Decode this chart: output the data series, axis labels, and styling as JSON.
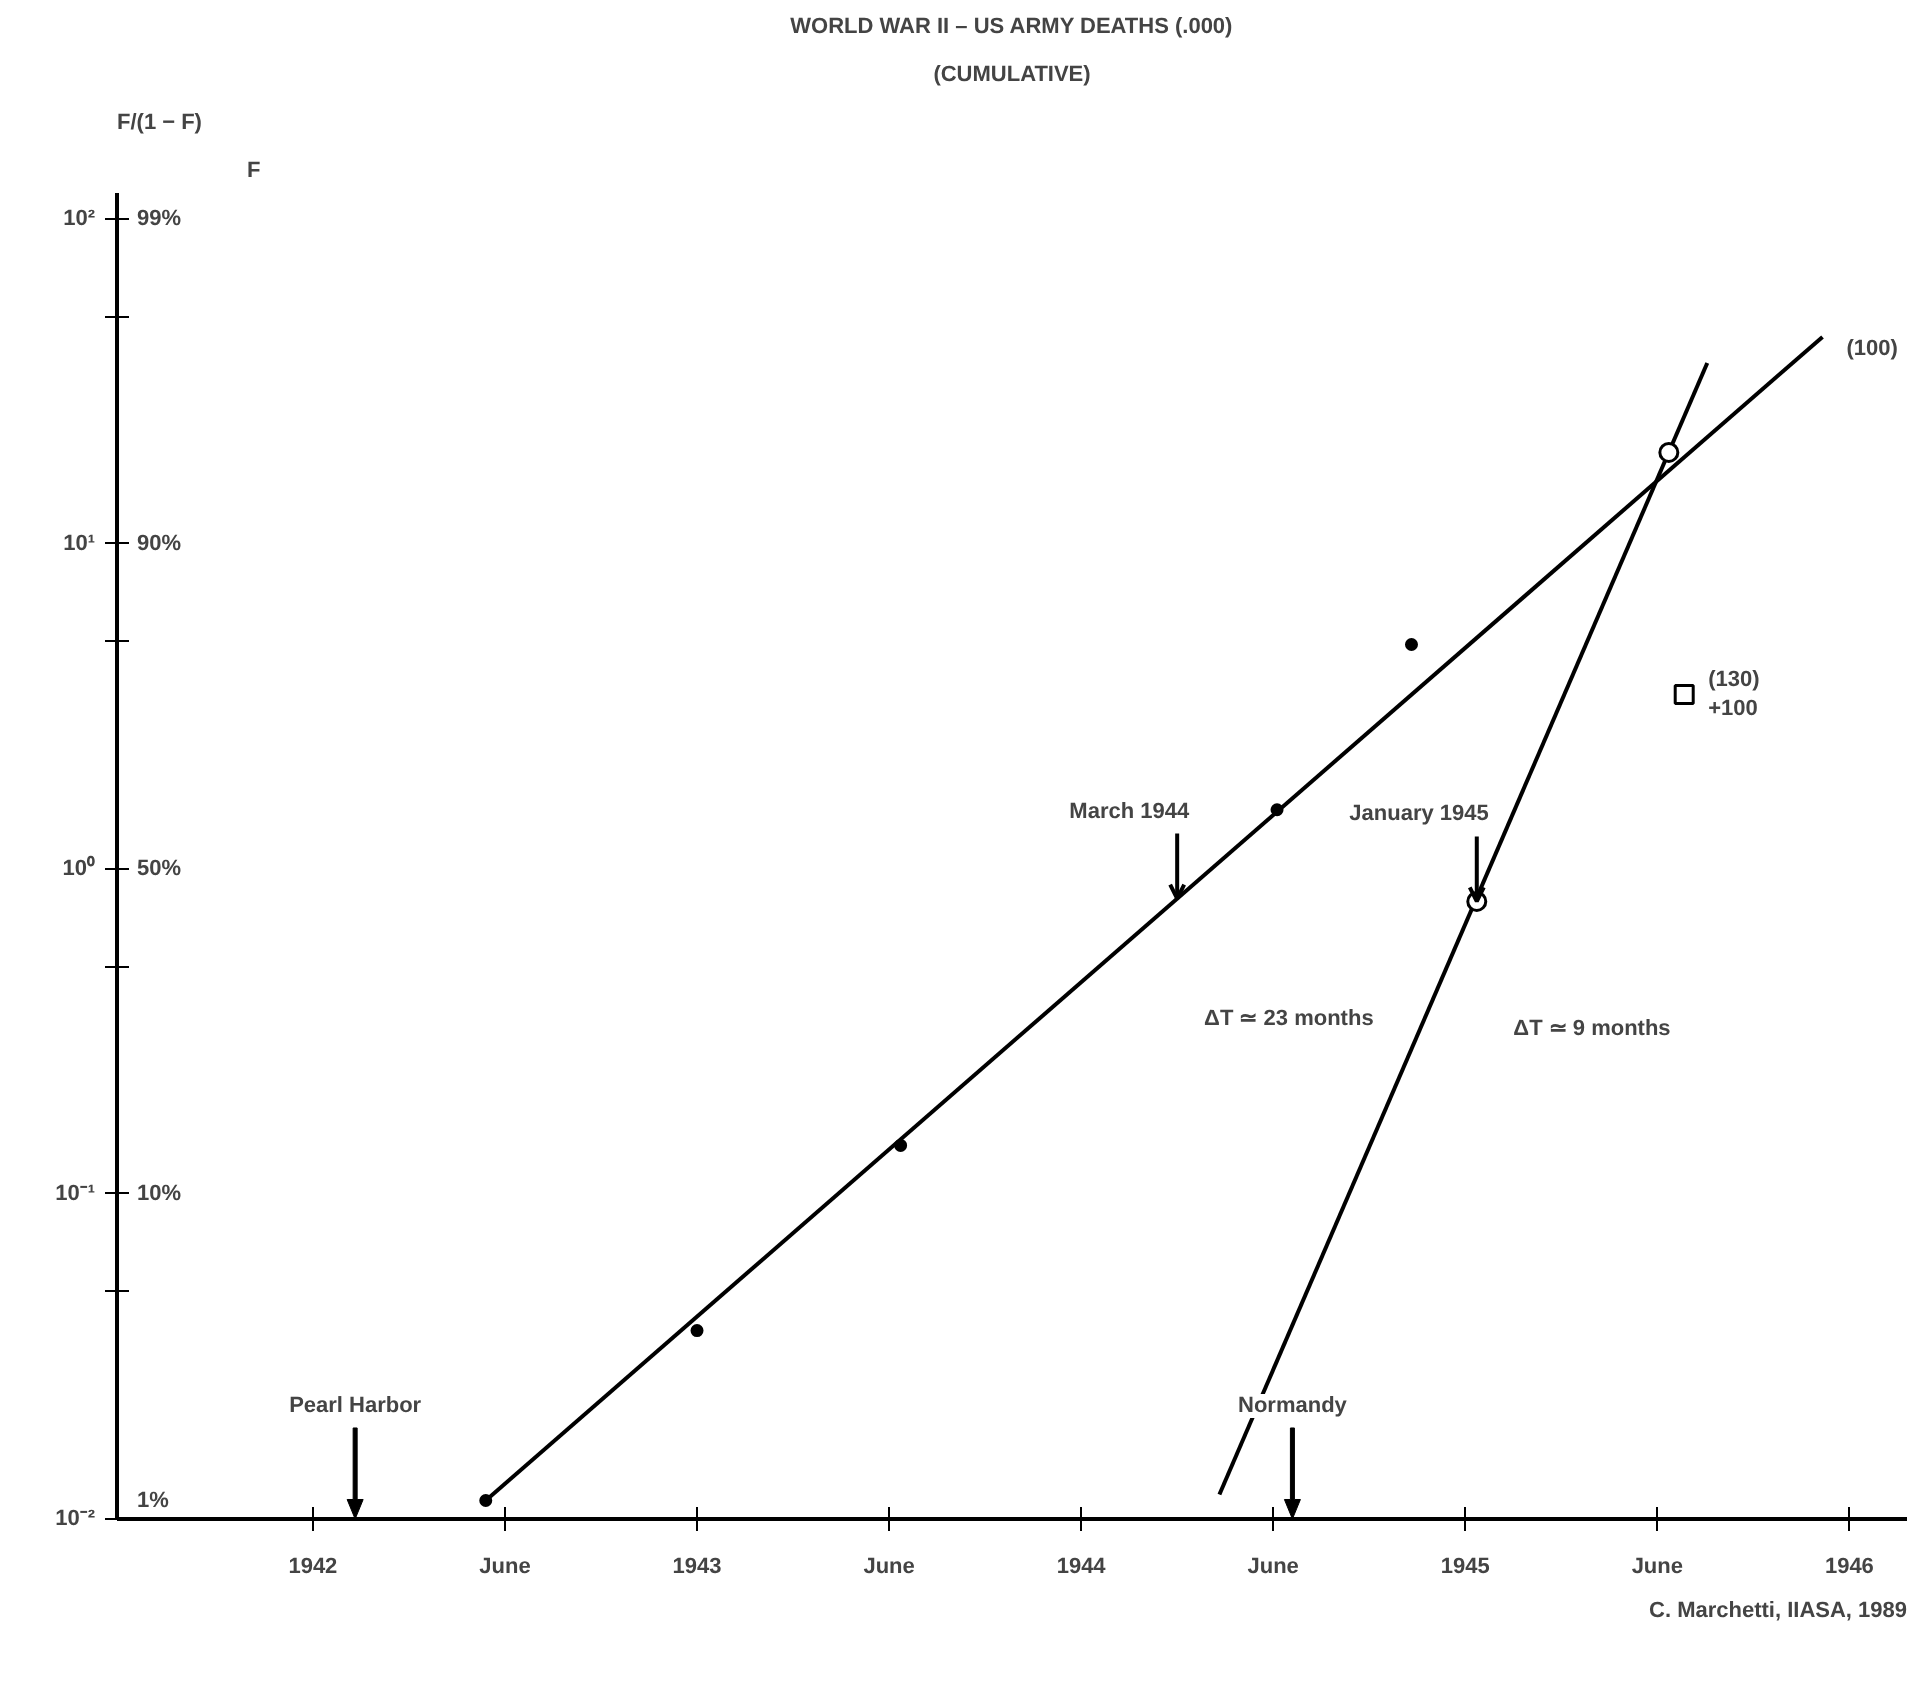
{
  "chart_data": {
    "type": "line",
    "title": "WORLD WAR II – US ARMY DEATHS (.000)",
    "subtitle": "(CUMULATIVE)",
    "ylabel": "F/(1 − F)",
    "y2label": "F",
    "log": "y",
    "xlim": [
      1941.49,
      1946.15
    ],
    "xticks": [
      1942,
      {
        "value": 1942.5,
        "label": "June"
      },
      1943,
      {
        "value": 1943.5,
        "label": "June"
      },
      1944,
      {
        "value": 1944.5,
        "label": "June"
      },
      1945,
      {
        "value": 1945.5,
        "label": "June"
      },
      1946
    ],
    "ylim": [
      0.01,
      120
    ],
    "yticks": [
      {
        "value": 0.01,
        "label": "10⁻²"
      },
      {
        "value": 0.05,
        "label": null
      },
      {
        "value": 0.1,
        "label": "10⁻¹"
      },
      {
        "value": 0.5,
        "label": null
      },
      {
        "value": 1,
        "label": "10⁰"
      },
      {
        "value": 5,
        "label": null
      },
      {
        "value": 10,
        "label": "10¹"
      },
      {
        "value": 50,
        "label": null
      },
      {
        "value": 100,
        "label": "10²"
      }
    ],
    "ref_lines": [
      {
        "axis": "x",
        "value": 1942.11,
        "label": "Pearl Harbor"
      },
      {
        "axis": "x",
        "value": 1944.55,
        "label": "Normandy"
      }
    ],
    "grid": false,
    "series": [
      {
        "name": "(100)",
        "color": "#000000",
        "x": [
          1942.45,
          1945.93
        ],
        "values": [
          0.0114,
          43.3
        ]
      },
      {
        "color": "#000000",
        "x": [
          1944.36,
          1945.63
        ],
        "values": [
          0.0119,
          36
        ]
      },
      {
        "type": "scatter",
        "marker": "circle",
        "color": "#000000",
        "x": [
          1942.45,
          1943.0,
          1943.53,
          1944.51,
          1944.86
        ],
        "values": [
          0.0114,
          0.038,
          0.141,
          1.52,
          4.9
        ]
      },
      {
        "type": "scatter",
        "marker": "circle",
        "color": "#ffffff",
        "x": [
          1945.03,
          1945.53
        ],
        "values": [
          0.794,
          19.1
        ]
      },
      {
        "name": "(130) +100",
        "type": "scatter",
        "marker": "square",
        "color": "#ffffff",
        "x": [
          1945.57
        ],
        "values": [
          3.44
        ]
      }
    ],
    "annotations": [
      {
        "text": "March 1944",
        "x": 1944.25,
        "y": 0.81
      },
      {
        "text": "January 1945",
        "x": 1945.03,
        "y": 0.794
      },
      "ΔT ≃ 23 months",
      "ΔT ≃ 9 months",
      "1%",
      "10%",
      "50%",
      "90%",
      "99%",
      "C. Marchetti, IIASA, 1989"
    ]
  }
}
